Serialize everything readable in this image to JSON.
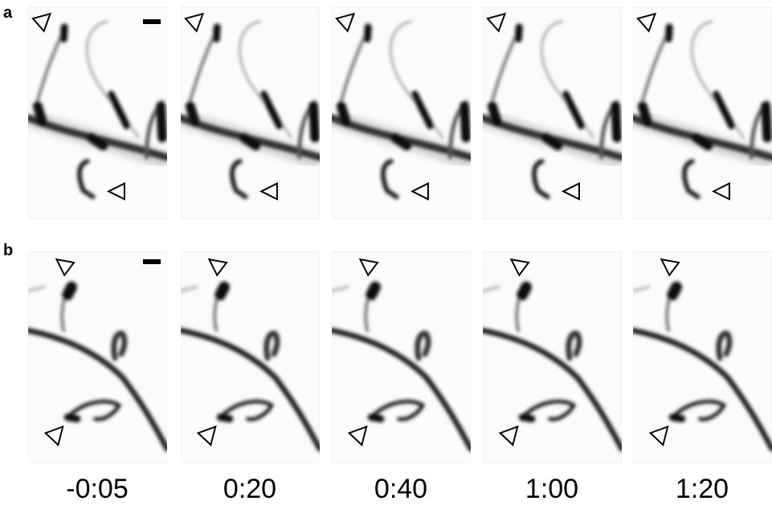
{
  "figure": {
    "panel_labels": [
      "a",
      "b"
    ],
    "time_labels": [
      "-0:05",
      "0:20",
      "0:40",
      "1:00",
      "1:20"
    ]
  }
}
